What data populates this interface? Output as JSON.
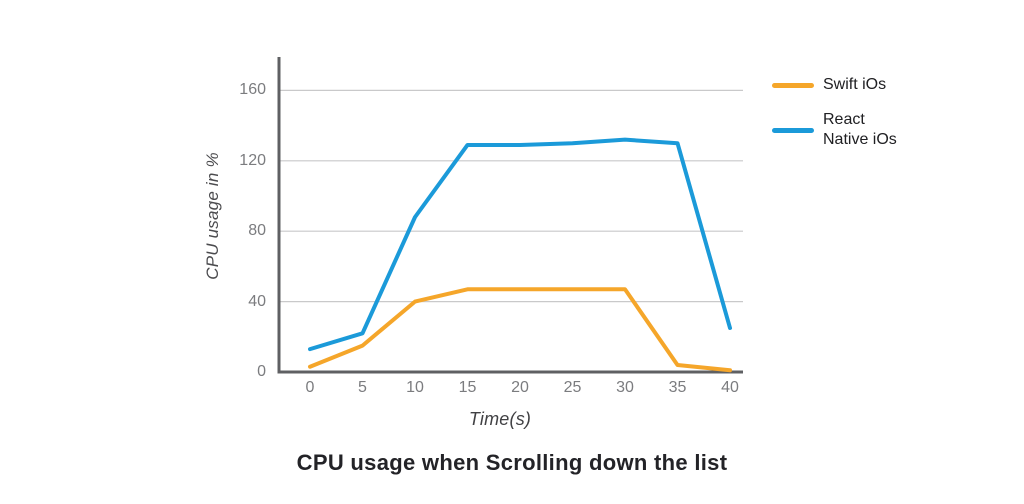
{
  "chart_data": {
    "type": "line",
    "title": "CPU usage when Scrolling down the list",
    "xlabel": "Time(s)",
    "ylabel": "CPU usage in %",
    "x": [
      0,
      5,
      10,
      15,
      20,
      25,
      30,
      35,
      40
    ],
    "x_ticks": [
      0,
      5,
      10,
      15,
      20,
      25,
      30,
      35,
      40
    ],
    "y_ticks": [
      0,
      40,
      80,
      120,
      160
    ],
    "xlim": [
      0,
      40
    ],
    "ylim": [
      0,
      179
    ],
    "grid": "horizontal",
    "legend_position": "top-right",
    "series": [
      {
        "name": "Swift iOs",
        "label_lines": [
          "Swift iOs"
        ],
        "color": "#F5A62A",
        "values": [
          3,
          15,
          40,
          47,
          47,
          47,
          47,
          4,
          1
        ]
      },
      {
        "name": "React Native iOs",
        "label_lines": [
          "React",
          "Native iOs"
        ],
        "color": "#1B9AD9",
        "values": [
          13,
          22,
          88,
          129,
          129,
          130,
          132,
          130,
          25
        ]
      }
    ]
  },
  "colors": {
    "background": "#ffffff",
    "axis": "#5f6063",
    "gridline": "#c9c9ca",
    "tick_label": "#7b7c7f",
    "axis_title": "#4b4b4e",
    "title": "#232327",
    "legend_text": "#202023"
  }
}
